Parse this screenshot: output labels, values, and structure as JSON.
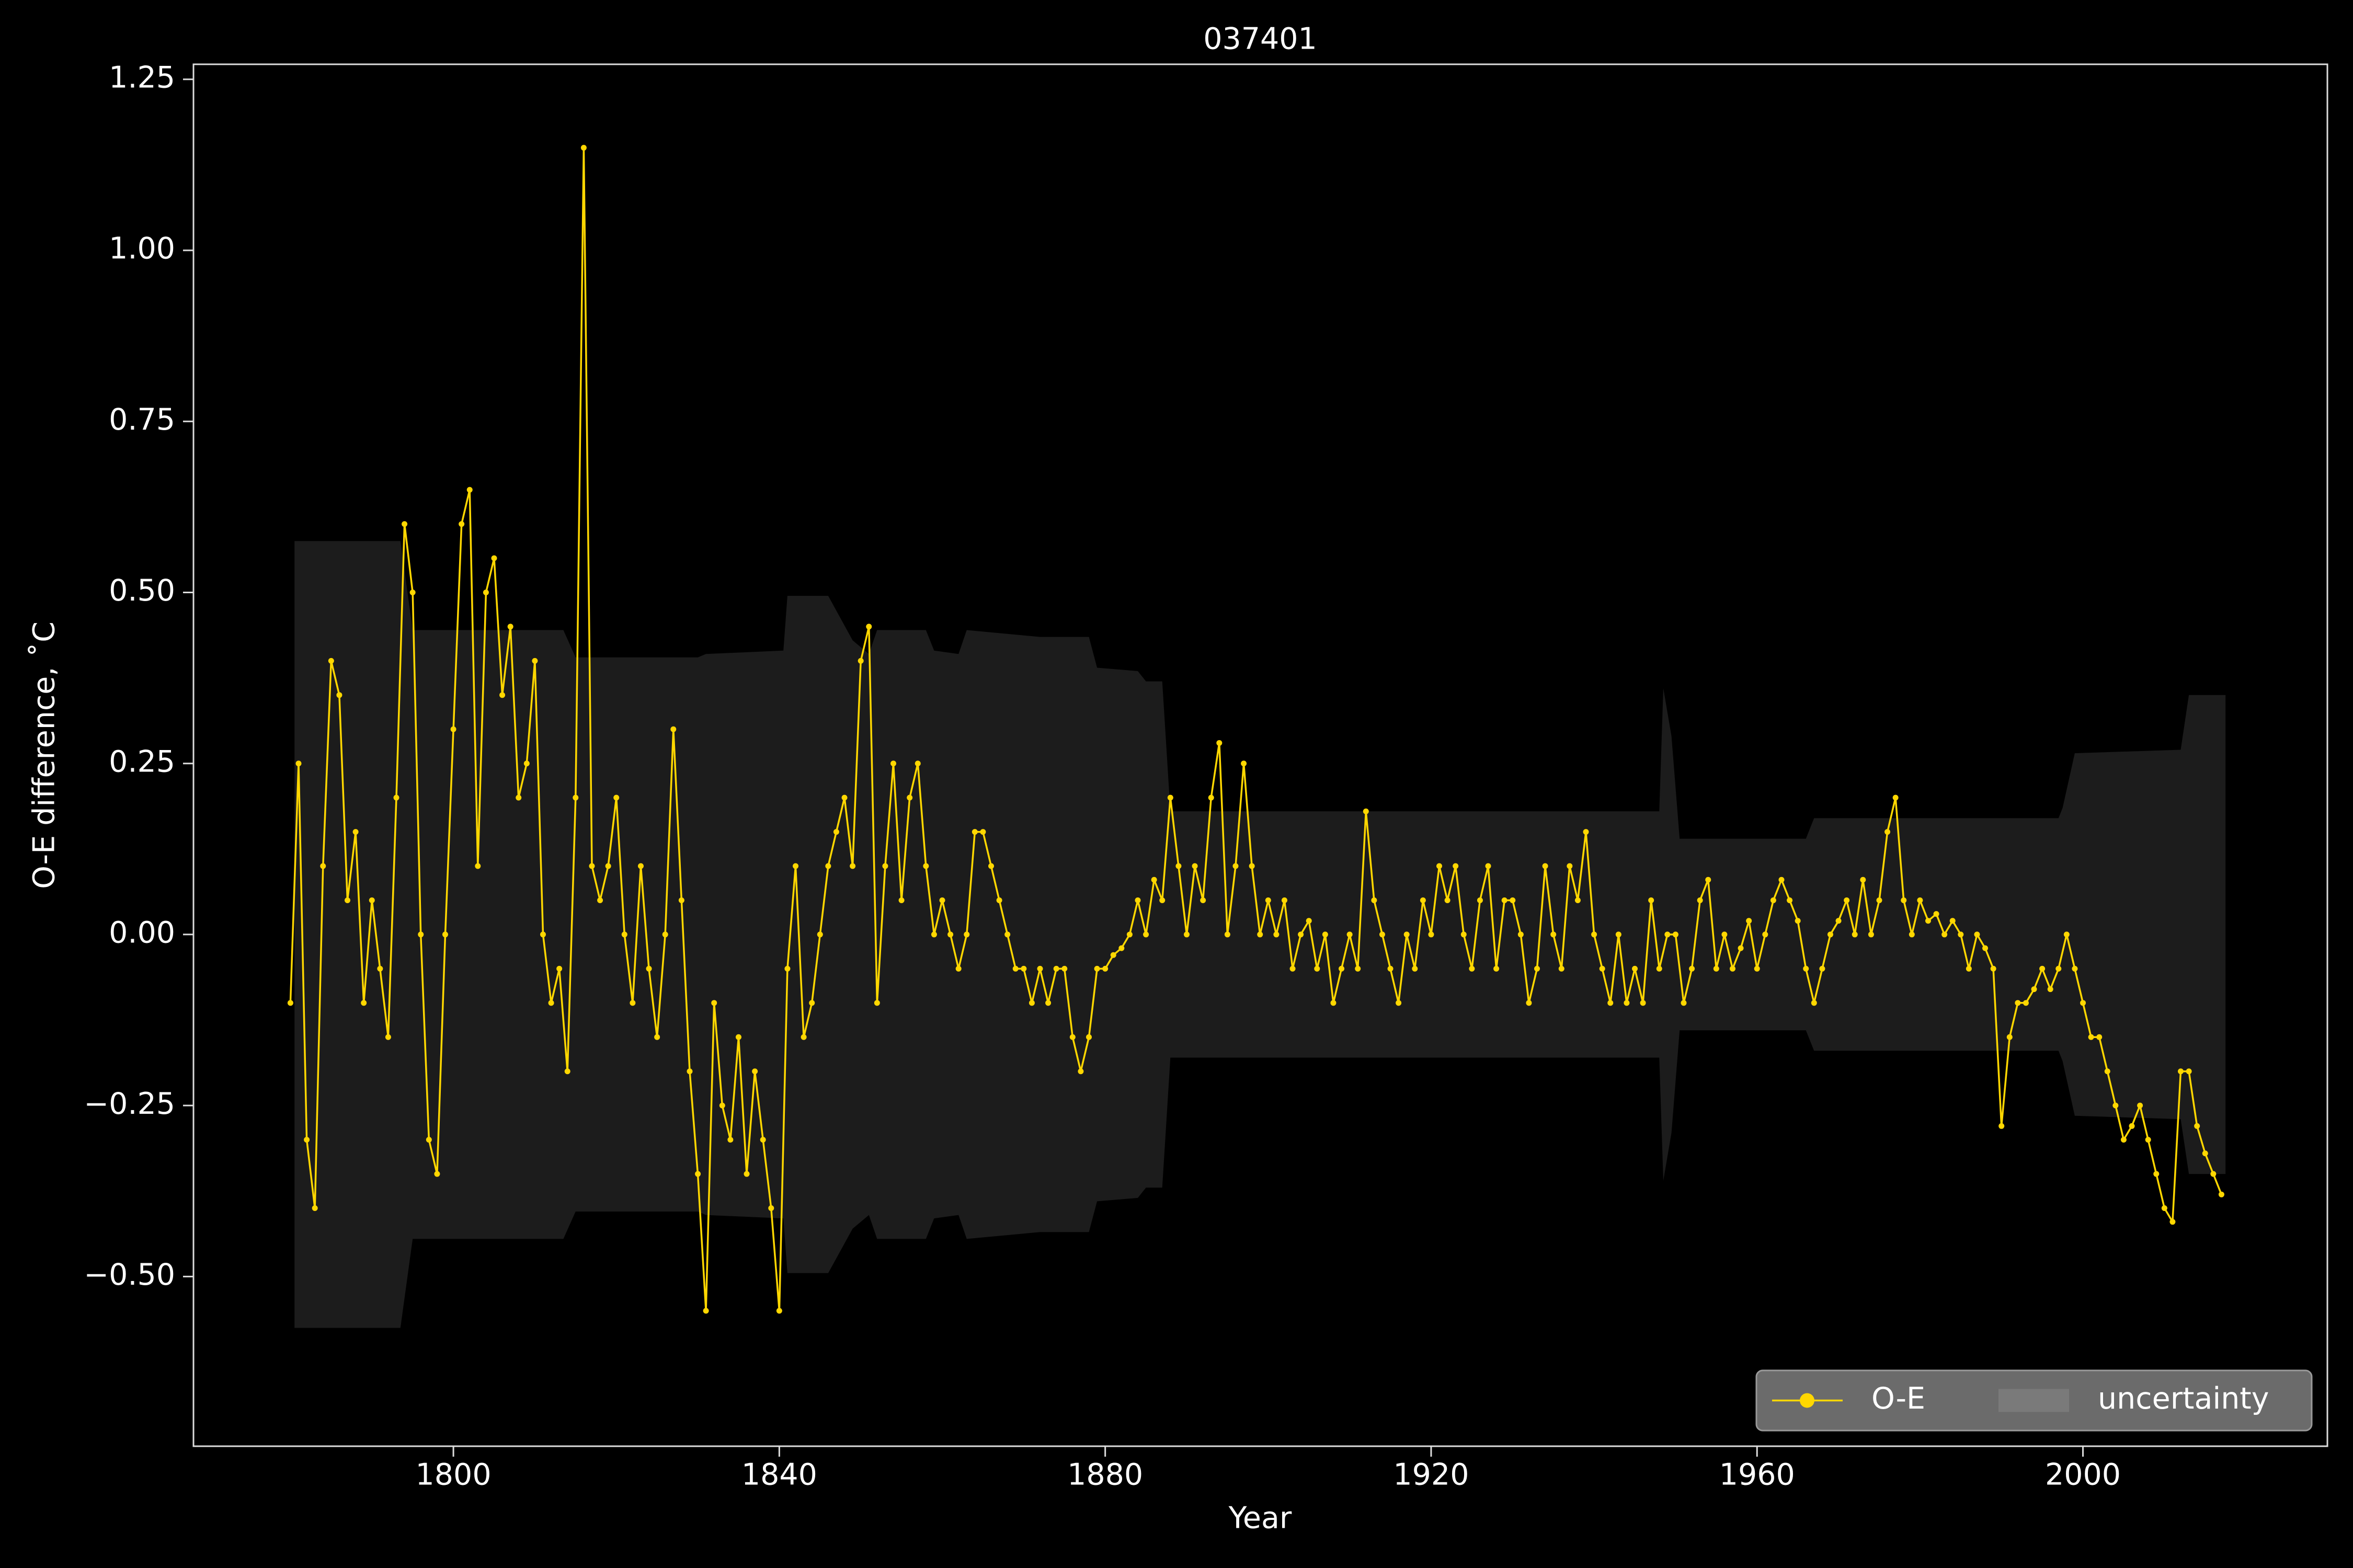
{
  "chart_data": {
    "type": "line",
    "title": "037401",
    "x_label": "Year",
    "y_label": "O-E difference, ˚C",
    "xlim": [
      1768.1,
      2030.0
    ],
    "ylim": [
      -0.748,
      1.272
    ],
    "xticks": [
      1800,
      1840,
      1880,
      1920,
      1960,
      2000
    ],
    "yticks": [
      {
        "value": -0.5,
        "label": "−0.50"
      },
      {
        "value": -0.25,
        "label": "−0.25"
      },
      {
        "value": 0,
        "label": "0.00"
      },
      0.25,
      {
        "value": 0.5,
        "label": "0.50"
      },
      0.75,
      {
        "value": 1,
        "label": "1.00"
      },
      1.25
    ],
    "grid": false,
    "legend": "lower right",
    "series": [
      {
        "name": "O-E",
        "color": "#ffd700",
        "x": [
          1780,
          1781,
          1782,
          1783,
          1784,
          1785,
          1786,
          1787,
          1788,
          1789,
          1790,
          1791,
          1792,
          1793,
          1794,
          1795,
          1796,
          1797,
          1798,
          1799,
          1800,
          1801,
          1802,
          1803,
          1804,
          1805,
          1806,
          1807,
          1808,
          1809,
          1810,
          1811,
          1812,
          1813,
          1814,
          1815,
          1816,
          1817,
          1818,
          1819,
          1820,
          1821,
          1822,
          1823,
          1824,
          1825,
          1826,
          1827,
          1828,
          1829,
          1830,
          1831,
          1832,
          1833,
          1834,
          1835,
          1836,
          1837,
          1838,
          1839,
          1840,
          1841,
          1842,
          1843,
          1844,
          1845,
          1846,
          1847,
          1848,
          1849,
          1850,
          1851,
          1852,
          1853,
          1854,
          1855,
          1856,
          1857,
          1858,
          1859,
          1860,
          1861,
          1862,
          1863,
          1864,
          1865,
          1866,
          1867,
          1868,
          1869,
          1870,
          1871,
          1872,
          1873,
          1874,
          1875,
          1876,
          1877,
          1878,
          1879,
          1880,
          1881,
          1882,
          1883,
          1884,
          1885,
          1886,
          1887,
          1888,
          1889,
          1890,
          1891,
          1892,
          1893,
          1894,
          1895,
          1896,
          1897,
          1898,
          1899,
          1900,
          1901,
          1902,
          1903,
          1904,
          1905,
          1906,
          1907,
          1908,
          1909,
          1910,
          1911,
          1912,
          1913,
          1914,
          1915,
          1916,
          1917,
          1918,
          1919,
          1920,
          1921,
          1922,
          1923,
          1924,
          1925,
          1926,
          1927,
          1928,
          1929,
          1930,
          1931,
          1932,
          1933,
          1934,
          1935,
          1936,
          1937,
          1938,
          1939,
          1940,
          1941,
          1942,
          1943,
          1944,
          1945,
          1946,
          1947,
          1948,
          1949,
          1950,
          1951,
          1952,
          1953,
          1954,
          1955,
          1956,
          1957,
          1958,
          1959,
          1960,
          1961,
          1962,
          1963,
          1964,
          1965,
          1966,
          1967,
          1968,
          1969,
          1970,
          1971,
          1972,
          1973,
          1974,
          1975,
          1976,
          1977,
          1978,
          1979,
          1980,
          1981,
          1982,
          1983,
          1984,
          1985,
          1986,
          1987,
          1988,
          1989,
          1990,
          1991,
          1992,
          1993,
          1994,
          1995,
          1996,
          1997,
          1998,
          1999,
          2000,
          2001,
          2002,
          2003,
          2004,
          2005,
          2006,
          2007,
          2008,
          2009,
          2010,
          2011,
          2012,
          2013,
          2014,
          2015,
          2016,
          2017
        ],
        "values": [
          -0.1,
          0.25,
          -0.3,
          -0.4,
          0.1,
          0.4,
          0.35,
          0.05,
          0.15,
          -0.1,
          0.05,
          -0.05,
          -0.15,
          0.2,
          0.6,
          0.5,
          0.0,
          -0.3,
          -0.35,
          0.0,
          0.3,
          0.6,
          0.65,
          0.1,
          0.5,
          0.55,
          0.35,
          0.45,
          0.2,
          0.25,
          0.4,
          0.0,
          -0.1,
          -0.05,
          -0.2,
          0.2,
          1.15,
          0.1,
          0.05,
          0.1,
          0.2,
          0.0,
          -0.1,
          0.1,
          -0.05,
          -0.15,
          0.0,
          0.3,
          0.05,
          -0.2,
          -0.35,
          -0.55,
          -0.1,
          -0.25,
          -0.3,
          -0.15,
          -0.35,
          -0.2,
          -0.3,
          -0.4,
          -0.55,
          -0.05,
          0.1,
          -0.15,
          -0.1,
          0.0,
          0.1,
          0.15,
          0.2,
          0.1,
          0.4,
          0.45,
          -0.1,
          0.1,
          0.25,
          0.05,
          0.2,
          0.25,
          0.1,
          0.0,
          0.05,
          0.0,
          -0.05,
          0.0,
          0.15,
          0.15,
          0.1,
          0.05,
          0.0,
          -0.05,
          -0.05,
          -0.1,
          -0.05,
          -0.1,
          -0.05,
          -0.05,
          -0.15,
          -0.2,
          -0.15,
          -0.05,
          -0.05,
          -0.03,
          -0.02,
          0.0,
          0.05,
          0.0,
          0.08,
          0.05,
          0.2,
          0.1,
          0.0,
          0.1,
          0.05,
          0.2,
          0.28,
          0.0,
          0.1,
          0.25,
          0.1,
          0.0,
          0.05,
          0.0,
          0.05,
          -0.05,
          0.0,
          0.02,
          -0.05,
          0.0,
          -0.1,
          -0.05,
          0.0,
          -0.05,
          0.18,
          0.05,
          0.0,
          -0.05,
          -0.1,
          0.0,
          -0.05,
          0.05,
          0.0,
          0.1,
          0.05,
          0.1,
          0.0,
          -0.05,
          0.05,
          0.1,
          -0.05,
          0.05,
          0.05,
          0.0,
          -0.1,
          -0.05,
          0.1,
          0.0,
          -0.05,
          0.1,
          0.05,
          0.15,
          0.0,
          -0.05,
          -0.1,
          0.0,
          -0.1,
          -0.05,
          -0.1,
          0.05,
          -0.05,
          0.0,
          0.0,
          -0.1,
          -0.05,
          0.05,
          0.08,
          -0.05,
          0.0,
          -0.05,
          -0.02,
          0.02,
          -0.05,
          0.0,
          0.05,
          0.08,
          0.05,
          0.02,
          -0.05,
          -0.1,
          -0.05,
          0.0,
          0.02,
          0.05,
          0.0,
          0.08,
          0.0,
          0.05,
          0.15,
          0.2,
          0.05,
          0.0,
          0.05,
          0.02,
          0.03,
          0.0,
          0.02,
          0.0,
          -0.05,
          0.0,
          -0.02,
          -0.05,
          -0.28,
          -0.15,
          -0.1,
          -0.1,
          -0.08,
          -0.05,
          -0.08,
          -0.05,
          0.0,
          -0.05,
          -0.1,
          -0.15,
          -0.15,
          -0.2,
          -0.25,
          -0.3,
          -0.28,
          -0.25,
          -0.3,
          -0.35,
          -0.4,
          -0.42,
          -0.2,
          -0.2,
          -0.28,
          -0.32,
          -0.35,
          -0.38
        ]
      },
      {
        "name": "uncertainty",
        "color": "#1c1c1c",
        "x": [
          1780.5,
          1793.5,
          1795,
          1813.5,
          1815,
          1830,
          1831,
          1840.5,
          1841,
          1846,
          1849,
          1851,
          1852,
          1858,
          1859,
          1862,
          1863,
          1872,
          1878,
          1879,
          1884,
          1885,
          1887,
          1888,
          1948,
          1948.5,
          1949.5,
          1950.5,
          1966,
          1967,
          1997,
          1997.5,
          1999,
          2012,
          2013,
          2017.5
        ],
        "upper": [
          0.575,
          0.575,
          0.445,
          0.445,
          0.405,
          0.405,
          0.41,
          0.415,
          0.495,
          0.495,
          0.43,
          0.41,
          0.445,
          0.445,
          0.415,
          0.41,
          0.445,
          0.435,
          0.435,
          0.39,
          0.385,
          0.37,
          0.37,
          0.18,
          0.18,
          0.36,
          0.29,
          0.14,
          0.14,
          0.17,
          0.17,
          0.185,
          0.265,
          0.27,
          0.35,
          0.35
        ],
        "lower": [
          -0.575,
          -0.575,
          -0.445,
          -0.445,
          -0.405,
          -0.405,
          -0.41,
          -0.415,
          -0.495,
          -0.495,
          -0.43,
          -0.41,
          -0.445,
          -0.445,
          -0.415,
          -0.41,
          -0.445,
          -0.435,
          -0.435,
          -0.39,
          -0.385,
          -0.37,
          -0.37,
          -0.18,
          -0.18,
          -0.36,
          -0.29,
          -0.14,
          -0.14,
          -0.17,
          -0.17,
          -0.185,
          -0.265,
          -0.27,
          -0.35,
          -0.35
        ]
      }
    ]
  }
}
